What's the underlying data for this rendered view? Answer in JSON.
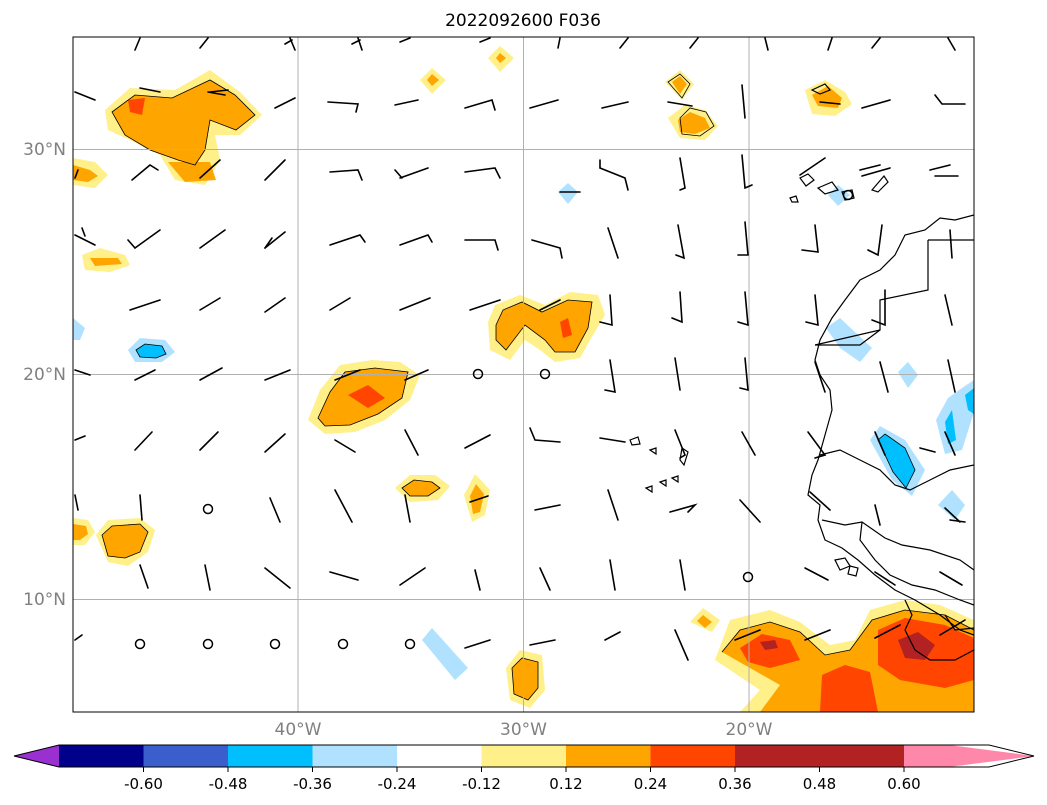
{
  "title": "2022092600 F036",
  "map": {
    "lon_range": [
      -50,
      -10
    ],
    "lat_range": [
      5,
      35
    ],
    "gridlines": true,
    "lat_ticks": [
      {
        "value": 30,
        "label": "30°N"
      },
      {
        "value": 20,
        "label": "20°N"
      },
      {
        "value": 10,
        "label": "10°N"
      }
    ],
    "lon_ticks": [
      {
        "value": -40,
        "label": "40°W"
      },
      {
        "value": -30,
        "label": "30°W"
      },
      {
        "value": -20,
        "label": "20°W"
      }
    ]
  },
  "colorbar": {
    "colors": [
      "#9b30d0",
      "#00008b",
      "#3a5fcd",
      "#00bfff",
      "#b0e2ff",
      "#ffffff",
      "#fff08a",
      "#ffa500",
      "#ff4500",
      "#b22222",
      "#ff88aa"
    ],
    "ticks": [
      "-0.60",
      "-0.48",
      "-0.36",
      "-0.24",
      "-0.12",
      "0.12",
      "0.24",
      "0.36",
      "0.48",
      "0.60"
    ],
    "extend": "both"
  },
  "features": {
    "positive_color_ramp": [
      "#fff08a",
      "#ffa500",
      "#ff4500",
      "#b22222"
    ],
    "negative_color_ramp": [
      "#b0e2ff",
      "#00bfff"
    ],
    "calm_marker": "circle",
    "wind_barbs": true
  }
}
